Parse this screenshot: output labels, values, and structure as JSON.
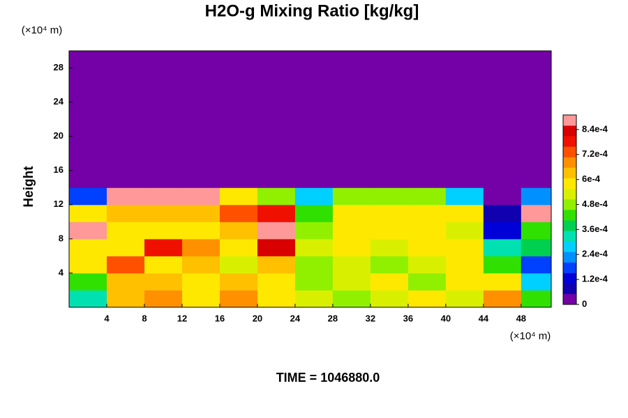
{
  "chart_data": {
    "type": "heatmap",
    "title": "H2O-g Mixing Ratio [kg/kg]",
    "ylabel": "Height",
    "x_unit": "(×10⁴ m)",
    "y_unit": "(×10⁴ m)",
    "footer": "TIME = 1046880.0",
    "x": [
      2,
      6,
      10,
      14,
      18,
      22,
      26,
      30,
      34,
      38,
      42,
      46,
      50
    ],
    "y": [
      1,
      3,
      5,
      7,
      9,
      11,
      13,
      15,
      17,
      19,
      21,
      23,
      25,
      27,
      29
    ],
    "z": [
      [
        0.00035,
        0.00065,
        0.00068,
        0.00058,
        0.00068,
        0.00058,
        0.00052,
        0.0005,
        0.00054,
        0.00056,
        0.00054,
        0.00068,
        0.00045
      ],
      [
        0.00045,
        0.00062,
        0.00065,
        0.00056,
        0.00065,
        0.0006,
        0.0005,
        0.00052,
        0.00056,
        0.0005,
        0.00056,
        0.00056,
        0.0003
      ],
      [
        0.00058,
        0.00072,
        0.0006,
        0.00062,
        0.00055,
        0.00062,
        0.0005,
        0.00054,
        0.0005,
        0.00054,
        0.00058,
        0.00045,
        0.0002
      ],
      [
        0.0006,
        0.00058,
        0.00076,
        0.0007,
        0.00058,
        0.00085,
        0.00052,
        0.00056,
        0.00052,
        0.00058,
        0.00056,
        0.00035,
        0.0004
      ],
      [
        0.00088,
        0.0006,
        0.0006,
        0.00058,
        0.00062,
        0.00088,
        0.0005,
        0.00056,
        0.00058,
        0.00056,
        0.00054,
        0.00015,
        0.00045
      ],
      [
        0.0006,
        0.00065,
        0.00062,
        0.00062,
        0.00075,
        0.0008,
        0.00045,
        0.00058,
        0.00058,
        0.00058,
        0.00058,
        8e-05,
        0.00088
      ],
      [
        0.0002,
        0.0009,
        0.0009,
        0.0009,
        0.0006,
        0.0005,
        0.0003,
        0.00048,
        0.00048,
        0.00048,
        0.0003,
        5e-05,
        0.00025
      ],
      [
        0,
        0,
        0,
        0,
        0,
        0,
        0,
        0,
        0,
        0,
        0,
        0,
        0
      ],
      [
        0,
        0,
        0,
        0,
        0,
        0,
        0,
        0,
        0,
        0,
        0,
        0,
        0
      ],
      [
        0,
        0,
        0,
        0,
        0,
        0,
        0,
        0,
        0,
        0,
        0,
        0,
        0
      ],
      [
        0,
        0,
        0,
        0,
        0,
        0,
        0,
        0,
        0,
        0,
        0,
        0,
        0
      ],
      [
        0,
        0,
        0,
        0,
        0,
        0,
        0,
        0,
        0,
        0,
        0,
        0,
        0
      ],
      [
        0,
        0,
        0,
        0,
        0,
        0,
        0,
        0,
        0,
        0,
        0,
        0,
        0
      ],
      [
        0,
        0,
        0,
        0,
        0,
        0,
        0,
        0,
        0,
        0,
        0,
        0,
        0
      ],
      [
        0,
        0,
        0,
        0,
        0,
        0,
        0,
        0,
        0,
        0,
        0,
        0,
        0
      ]
    ],
    "xlim": [
      0,
      51.2
    ],
    "ylim": [
      0,
      30
    ],
    "xticks": [
      4,
      8,
      12,
      16,
      20,
      24,
      28,
      32,
      36,
      40,
      44,
      48
    ],
    "yticks": [
      4,
      8,
      12,
      16,
      20,
      24,
      28
    ],
    "clim": [
      0,
      0.00091
    ],
    "cticks": [
      0,
      {
        "value": 0.00012,
        "label": "1.2e-4"
      },
      {
        "value": 0.00024,
        "label": "2.4e-4"
      },
      {
        "value": 0.00036,
        "label": "3.6e-4"
      },
      {
        "value": 0.00048,
        "label": "4.8e-4"
      },
      {
        "value": 0.0006,
        "label": "6e-4"
      },
      {
        "value": 0.00072,
        "label": "7.2e-4"
      },
      {
        "value": 0.00084,
        "label": "8.4e-4"
      }
    ],
    "colors": [
      "#7400a8",
      "#1000b0",
      "#0000d8",
      "#0040ff",
      "#0090ff",
      "#00d0ff",
      "#00e0b0",
      "#00d050",
      "#30e000",
      "#90f000",
      "#d8f000",
      "#ffe800",
      "#ffc000",
      "#ff9000",
      "#ff5000",
      "#f01000",
      "#d80000",
      "#ff9898"
    ]
  }
}
